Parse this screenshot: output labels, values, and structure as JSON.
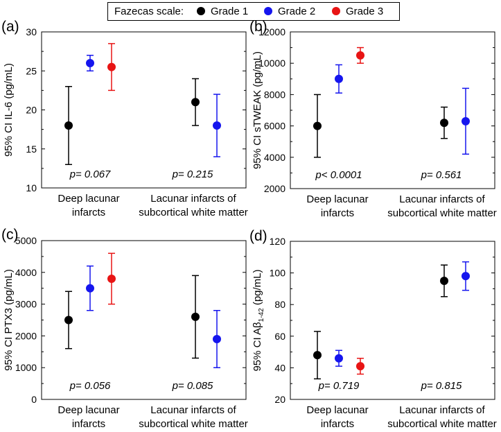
{
  "legend": {
    "title": "Fazecas scale:",
    "entries": [
      {
        "label": "Grade 1",
        "color": "#000000"
      },
      {
        "label": "Grade 2",
        "color": "#1515ee"
      },
      {
        "label": "Grade 3",
        "color": "#e81414"
      }
    ]
  },
  "chart_data": [
    {
      "type": "errorbar",
      "panel_label": "(a)",
      "ylabel": "95% CI IL-6 (pg/mL)",
      "ylabel_parts": [
        {
          "text": "95% CI IL-6 (pg/mL)"
        }
      ],
      "ylim": [
        10,
        30
      ],
      "yticks": [
        10,
        15,
        20,
        25,
        30
      ],
      "categories": [
        {
          "lines": [
            "Deep lacunar",
            "infarcts"
          ],
          "pvalue": "p= 0.067"
        },
        {
          "lines": [
            "Lacunar infarcts of",
            "subcortical white matter"
          ],
          "pvalue": "p= 0.215"
        }
      ],
      "points": [
        {
          "category": 0,
          "series": "Grade 1",
          "value": 18,
          "low": 13,
          "high": 23
        },
        {
          "category": 0,
          "series": "Grade 2",
          "value": 26,
          "low": 25,
          "high": 27
        },
        {
          "category": 0,
          "series": "Grade 3",
          "value": 25.5,
          "low": 22.5,
          "high": 28.5
        },
        {
          "category": 1,
          "series": "Grade 1",
          "value": 21,
          "low": 18,
          "high": 24
        },
        {
          "category": 1,
          "series": "Grade 2",
          "value": 18,
          "low": 14,
          "high": 22
        }
      ]
    },
    {
      "type": "errorbar",
      "panel_label": "(b)",
      "ylabel": "95% CI sTWEAK (pg/mL)",
      "ylabel_parts": [
        {
          "text": "95% CI sTWEAK (pg/mL)"
        }
      ],
      "ylim": [
        2000,
        12000
      ],
      "yticks": [
        2000,
        4000,
        6000,
        8000,
        10000,
        12000
      ],
      "categories": [
        {
          "lines": [
            "Deep lacunar",
            "infarcts"
          ],
          "pvalue": "p< 0.0001"
        },
        {
          "lines": [
            "Lacunar infarcts of",
            "subcortical white matter"
          ],
          "pvalue": "p= 0.561"
        }
      ],
      "points": [
        {
          "category": 0,
          "series": "Grade 1",
          "value": 6000,
          "low": 4000,
          "high": 8000
        },
        {
          "category": 0,
          "series": "Grade 2",
          "value": 9000,
          "low": 8100,
          "high": 9900
        },
        {
          "category": 0,
          "series": "Grade 3",
          "value": 10500,
          "low": 10000,
          "high": 11000
        },
        {
          "category": 1,
          "series": "Grade 1",
          "value": 6200,
          "low": 5200,
          "high": 7200
        },
        {
          "category": 1,
          "series": "Grade 2",
          "value": 6300,
          "low": 4200,
          "high": 8400
        }
      ]
    },
    {
      "type": "errorbar",
      "panel_label": "(c)",
      "ylabel": "95% CI PTX3 (pg/mL)",
      "ylabel_parts": [
        {
          "text": "95% CI PTX3 (pg/mL)"
        }
      ],
      "ylim": [
        0,
        5000
      ],
      "yticks": [
        0,
        1000,
        2000,
        3000,
        4000,
        5000
      ],
      "categories": [
        {
          "lines": [
            "Deep lacunar",
            "infarcts"
          ],
          "pvalue": "p= 0.056"
        },
        {
          "lines": [
            "Lacunar infarcts of",
            "subcortical white matter"
          ],
          "pvalue": "p= 0.085"
        }
      ],
      "points": [
        {
          "category": 0,
          "series": "Grade 1",
          "value": 2500,
          "low": 1600,
          "high": 3400
        },
        {
          "category": 0,
          "series": "Grade 2",
          "value": 3500,
          "low": 2800,
          "high": 4200
        },
        {
          "category": 0,
          "series": "Grade 3",
          "value": 3800,
          "low": 3000,
          "high": 4600
        },
        {
          "category": 1,
          "series": "Grade 1",
          "value": 2600,
          "low": 1300,
          "high": 3900
        },
        {
          "category": 1,
          "series": "Grade 2",
          "value": 1900,
          "low": 1000,
          "high": 2800
        }
      ]
    },
    {
      "type": "errorbar",
      "panel_label": "(d)",
      "ylabel": "95% CI Aβ1-42 (pg/mL)",
      "ylabel_parts": [
        {
          "text": "95% CI Aβ"
        },
        {
          "text": "1-42",
          "sub": true
        },
        {
          "text": " (pg/mL)"
        }
      ],
      "ylim": [
        20,
        120
      ],
      "yticks": [
        20,
        40,
        60,
        80,
        100,
        120
      ],
      "categories": [
        {
          "lines": [
            "Deep lacunar",
            "infarcts"
          ],
          "pvalue": "p= 0.719"
        },
        {
          "lines": [
            "Lacunar infarcts of",
            "subcortical white matter"
          ],
          "pvalue": "p= 0.815"
        }
      ],
      "points": [
        {
          "category": 0,
          "series": "Grade 1",
          "value": 48,
          "low": 33,
          "high": 63
        },
        {
          "category": 0,
          "series": "Grade 2",
          "value": 46,
          "low": 41,
          "high": 51
        },
        {
          "category": 0,
          "series": "Grade 3",
          "value": 41,
          "low": 36,
          "high": 46
        },
        {
          "category": 1,
          "series": "Grade 1",
          "value": 95,
          "low": 85,
          "high": 105
        },
        {
          "category": 1,
          "series": "Grade 2",
          "value": 98,
          "low": 89,
          "high": 107
        }
      ]
    }
  ]
}
